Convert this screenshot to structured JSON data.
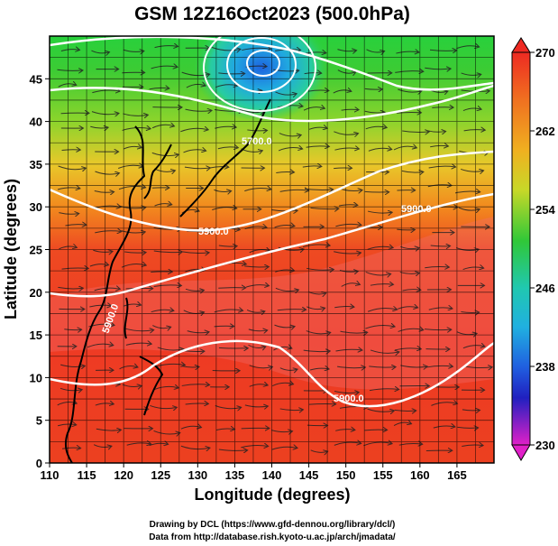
{
  "title": "GSM 12Z16Oct2023 (500.0hPa)",
  "x_axis": {
    "label": "Longitude (degrees)",
    "range": [
      110,
      170
    ],
    "ticks": [
      "110",
      "115",
      "120",
      "125",
      "130",
      "135",
      "140",
      "145",
      "150",
      "155",
      "160",
      "165"
    ]
  },
  "y_axis": {
    "label": "Latitude  (degrees)",
    "range": [
      0,
      50
    ],
    "ticks": [
      "0",
      "5",
      "10",
      "15",
      "20",
      "25",
      "30",
      "35",
      "40",
      "45"
    ]
  },
  "colorbar": {
    "labels": [
      "270",
      "262",
      "254",
      "246",
      "238",
      "230"
    ],
    "range": [
      230,
      270
    ]
  },
  "contour_labels": [
    "5700.0",
    "5900.0",
    "5900.0",
    "5900.0",
    "5900.0"
  ],
  "credits": {
    "line1": "Drawing by DCL (https://www.gfd-dennou.org/library/dcl/)",
    "line2": "Data from http://database.rish.kyoto-u.ac.jp/arch/jmadata/"
  },
  "colors": {
    "red": "#ee3a1f",
    "orange": "#f28a1e",
    "yellow": "#e6dc28",
    "green": "#2fc83a",
    "cyan": "#20c0d8",
    "blue": "#2050d8",
    "magenta": "#e020c0"
  }
}
